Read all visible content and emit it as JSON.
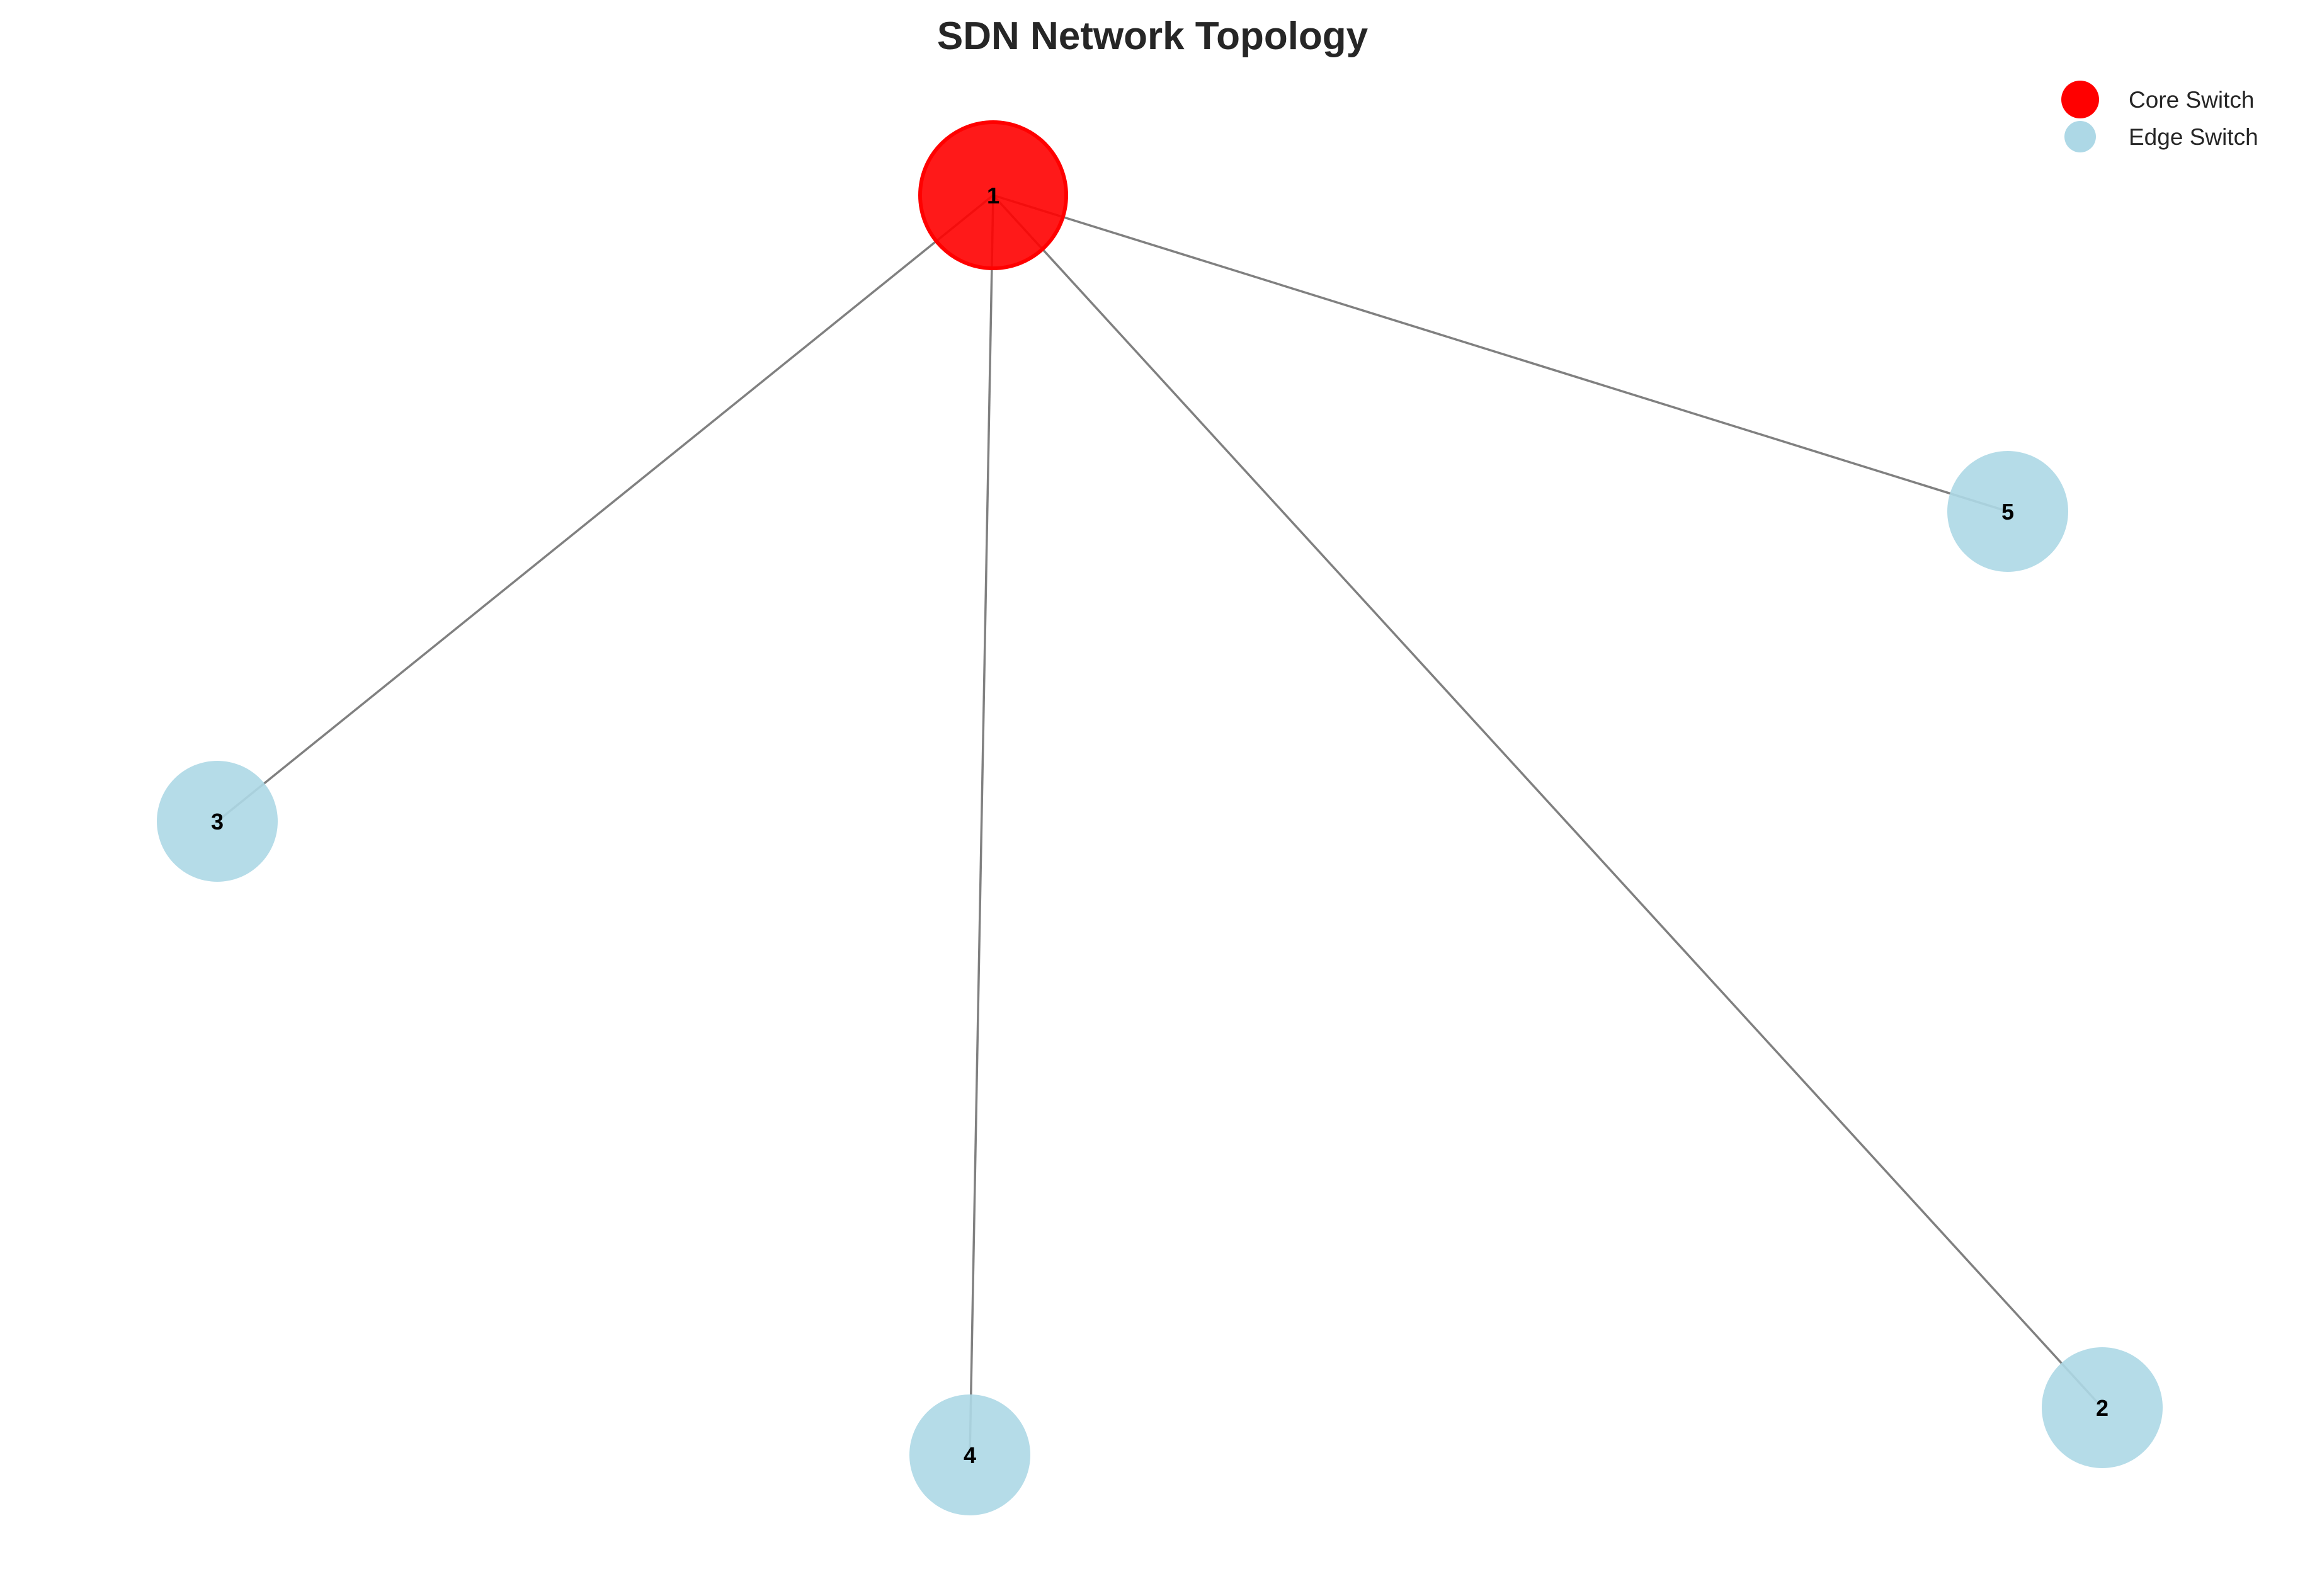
{
  "title": "SDN Network Topology",
  "colors": {
    "core": "#ff0000",
    "edge": "#add8e6",
    "link": "#808080",
    "title": "#262626"
  },
  "legend": {
    "placement": "top-right",
    "items": [
      {
        "label": "Core Switch",
        "type": "core"
      },
      {
        "label": "Edge Switch",
        "type": "edge"
      }
    ]
  },
  "nodes": [
    {
      "id": "1",
      "label": "1",
      "type": "core"
    },
    {
      "id": "2",
      "label": "2",
      "type": "edge"
    },
    {
      "id": "3",
      "label": "3",
      "type": "edge"
    },
    {
      "id": "4",
      "label": "4",
      "type": "edge"
    },
    {
      "id": "5",
      "label": "5",
      "type": "edge"
    }
  ],
  "edges": [
    {
      "source": "1",
      "target": "2"
    },
    {
      "source": "1",
      "target": "3"
    },
    {
      "source": "1",
      "target": "4"
    },
    {
      "source": "1",
      "target": "5"
    }
  ]
}
